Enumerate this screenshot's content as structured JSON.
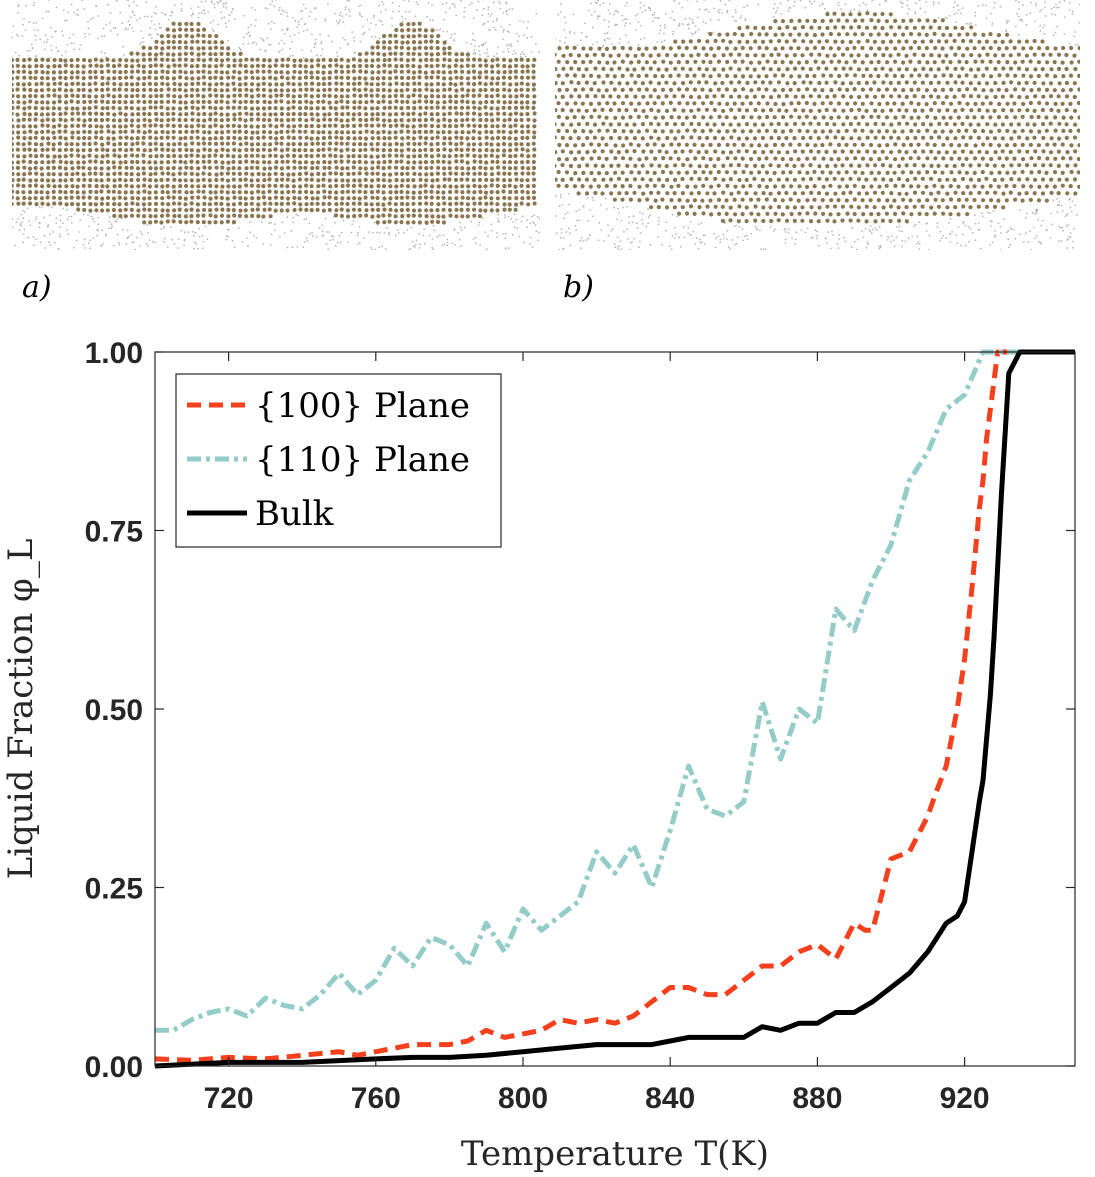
{
  "panels": {
    "a": {
      "label": "a)",
      "lattice": "square",
      "crystal_color": "#8a7650",
      "liquid_color": "#b8b8b8"
    },
    "b": {
      "label": "b)",
      "lattice": "hexagonal",
      "crystal_color": "#8a7650",
      "liquid_color": "#b8b8b8"
    }
  },
  "chart_data": {
    "type": "line",
    "xlabel": "Temperature T(K)",
    "ylabel": "Liquid Fraction φ_L",
    "xlim": [
      700,
      950
    ],
    "ylim": [
      0,
      1
    ],
    "xticks": [
      720,
      760,
      800,
      840,
      880,
      920
    ],
    "xtick_labels": [
      "720",
      "760",
      "800",
      "840",
      "880",
      "920"
    ],
    "yticks": [
      0,
      0.25,
      0.5,
      0.75,
      1.0
    ],
    "ytick_labels": [
      "0.00",
      "0.25",
      "0.50",
      "0.75",
      "1.00"
    ],
    "legend_position": "top-left",
    "series": [
      {
        "name": "{100} Plane",
        "color": "#f4401c",
        "style": "dashed",
        "x": [
          700,
          710,
          720,
          730,
          740,
          750,
          755,
          760,
          770,
          780,
          785,
          790,
          795,
          800,
          805,
          810,
          815,
          820,
          825,
          830,
          835,
          840,
          845,
          850,
          855,
          860,
          865,
          870,
          875,
          880,
          885,
          890,
          893,
          895,
          900,
          905,
          910,
          912,
          915,
          918,
          920,
          922,
          924,
          925,
          926,
          927,
          928,
          929,
          950
        ],
        "y": [
          0.01,
          0.008,
          0.012,
          0.01,
          0.015,
          0.02,
          0.015,
          0.02,
          0.03,
          0.03,
          0.035,
          0.05,
          0.04,
          0.045,
          0.05,
          0.065,
          0.06,
          0.065,
          0.06,
          0.07,
          0.09,
          0.11,
          0.11,
          0.1,
          0.1,
          0.12,
          0.14,
          0.14,
          0.16,
          0.17,
          0.15,
          0.2,
          0.19,
          0.19,
          0.29,
          0.3,
          0.35,
          0.38,
          0.42,
          0.5,
          0.57,
          0.67,
          0.78,
          0.82,
          0.88,
          0.92,
          0.96,
          1.0,
          1.0
        ]
      },
      {
        "name": "{110} Plane",
        "color": "#94ccc8",
        "style": "dash-dot",
        "x": [
          700,
          705,
          710,
          715,
          720,
          725,
          730,
          735,
          740,
          745,
          750,
          755,
          760,
          765,
          770,
          775,
          780,
          785,
          790,
          795,
          800,
          805,
          810,
          815,
          820,
          825,
          830,
          835,
          840,
          845,
          850,
          855,
          860,
          865,
          870,
          875,
          880,
          885,
          890,
          895,
          900,
          905,
          910,
          915,
          920,
          925,
          930,
          950
        ],
        "y": [
          0.05,
          0.05,
          0.065,
          0.075,
          0.08,
          0.07,
          0.095,
          0.085,
          0.08,
          0.1,
          0.13,
          0.1,
          0.12,
          0.165,
          0.14,
          0.18,
          0.17,
          0.14,
          0.2,
          0.16,
          0.22,
          0.19,
          0.21,
          0.23,
          0.3,
          0.27,
          0.31,
          0.25,
          0.33,
          0.42,
          0.36,
          0.35,
          0.37,
          0.51,
          0.43,
          0.5,
          0.48,
          0.64,
          0.61,
          0.68,
          0.73,
          0.82,
          0.86,
          0.92,
          0.94,
          1.0,
          1.0,
          1.0
        ]
      },
      {
        "name": "Bulk",
        "color": "#000000",
        "style": "solid",
        "x": [
          700,
          720,
          740,
          760,
          770,
          780,
          790,
          800,
          810,
          820,
          830,
          835,
          840,
          845,
          850,
          855,
          860,
          865,
          870,
          875,
          880,
          885,
          890,
          895,
          900,
          905,
          910,
          915,
          918,
          920,
          922,
          924,
          925,
          926,
          927,
          928,
          930,
          932,
          935,
          950
        ],
        "y": [
          0.0,
          0.005,
          0.005,
          0.01,
          0.012,
          0.012,
          0.015,
          0.02,
          0.025,
          0.03,
          0.03,
          0.03,
          0.035,
          0.04,
          0.04,
          0.04,
          0.04,
          0.055,
          0.05,
          0.06,
          0.06,
          0.075,
          0.075,
          0.09,
          0.11,
          0.13,
          0.16,
          0.2,
          0.21,
          0.23,
          0.3,
          0.37,
          0.4,
          0.46,
          0.52,
          0.6,
          0.8,
          0.97,
          1.0,
          1.0
        ]
      }
    ]
  }
}
